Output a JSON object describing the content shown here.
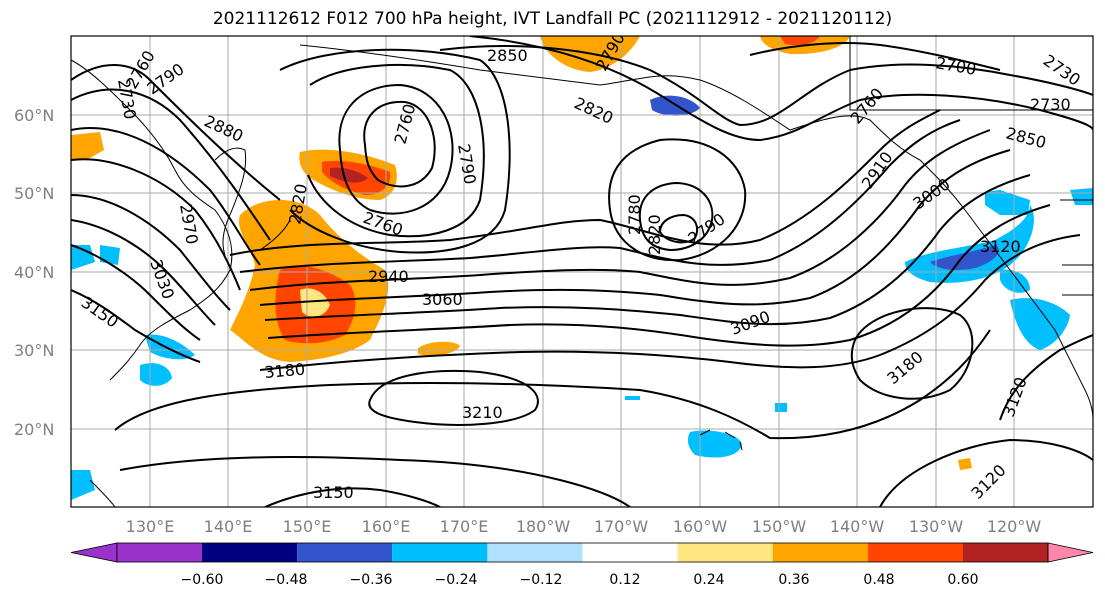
{
  "title": "2021112612 F012 700 hPa height, IVT Landfall PC (2021112912 - 2021120112)",
  "lat_labels": [
    "60°N",
    "50°N",
    "40°N",
    "30°N",
    "20°N"
  ],
  "lon_labels": [
    "130°E",
    "140°E",
    "150°E",
    "160°E",
    "170°E",
    "180°W",
    "170°W",
    "160°W",
    "150°W",
    "140°W",
    "130°W",
    "120°W"
  ],
  "contour_labels": [
    "2730",
    "2760",
    "2790",
    "2850",
    "2880",
    "2820",
    "2970",
    "3030",
    "3150",
    "2760",
    "2760",
    "2820",
    "2790",
    "2940",
    "3060",
    "3180",
    "3210",
    "3150",
    "2820",
    "2790",
    "2700",
    "2760",
    "2910",
    "3000",
    "3090",
    "3120",
    "3180",
    "3120",
    "3120",
    "2850",
    "2730",
    "2730",
    "2790",
    "2780"
  ],
  "colorbar": {
    "ticks": [
      "−0.60",
      "−0.48",
      "−0.36",
      "−0.24",
      "−0.12",
      "0.12",
      "0.24",
      "0.36",
      "0.48",
      "0.60"
    ],
    "colors": [
      "#9933cc",
      "#000080",
      "#3355cc",
      "#00bfff",
      "#b0e2ff",
      "#ffffff",
      "#ffe680",
      "#ffa500",
      "#ff4500",
      "#b22222",
      "#ff88aa"
    ]
  }
}
